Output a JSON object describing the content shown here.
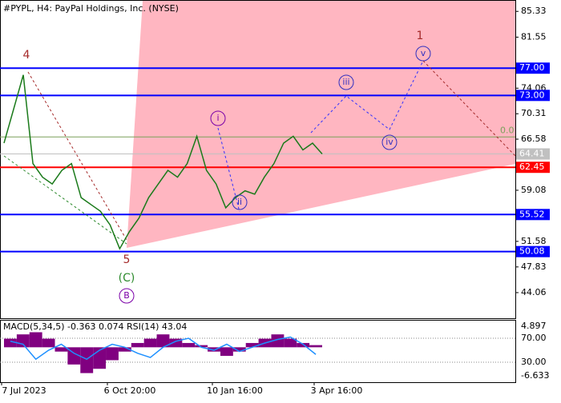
{
  "chart_data": [
    {
      "type": "line",
      "title": "#PYPL, H4:  PayPal Holdings, Inc. (NYSE)",
      "values": [
        66,
        71,
        76,
        63,
        61,
        60,
        62,
        63,
        58,
        57,
        56,
        54,
        50.5,
        53,
        55,
        58,
        60,
        62,
        61,
        63,
        67,
        62,
        60,
        56.5,
        58,
        59,
        58.5,
        61,
        63,
        66,
        67,
        65,
        66,
        64.41
      ],
      "color": "#1a7a1a",
      "ylim": [
        40.3,
        87.0
      ],
      "yticks": [
        85.33,
        81.55,
        74.06,
        70.31,
        66.58,
        59.08,
        51.58,
        47.83,
        44.06
      ],
      "levels": [
        {
          "value": 77,
          "label": "77.00",
          "color": "#0000ff"
        },
        {
          "value": 73,
          "label": "73.00",
          "color": "#0000ff"
        },
        {
          "value": 62.45,
          "label": "62.45",
          "color": "#ff0000"
        },
        {
          "value": 55.52,
          "label": "55.52",
          "color": "#0000ff"
        },
        {
          "value": 50.08,
          "label": "50.08",
          "color": "#0000ff"
        }
      ],
      "current": {
        "value": 64.41,
        "label": "64.41"
      },
      "fib": {
        "value": 66.9,
        "label": "0.0"
      },
      "waves": [
        {
          "label": "4",
          "color": "#a52a2a",
          "circled": false
        },
        {
          "label": "5",
          "color": "#a52a2a",
          "circled": false
        },
        {
          "label": "(C)",
          "color": "#2e8b2e",
          "circled": false
        },
        {
          "label": "B",
          "color": "#7b00a8",
          "circled": true
        },
        {
          "label": "i",
          "color": "#7b00a8",
          "circled": true
        },
        {
          "label": "ii",
          "color": "#3030c0",
          "circled": true
        },
        {
          "label": "iii",
          "color": "#3030c0",
          "circled": true
        },
        {
          "label": "iv",
          "color": "#3030c0",
          "circled": true
        },
        {
          "label": "v",
          "color": "#3030c0",
          "circled": true
        },
        {
          "label": "1",
          "color": "#a52a2a",
          "circled": false
        }
      ],
      "xlabels": [
        "7 Jul 2023",
        "6 Oct 20:00",
        "10 Jan 16:00",
        "3 Apr 16:00"
      ]
    },
    {
      "type": "indicator",
      "title": "MACD(5,34,5) -0.363 0.074 RSI(14) 43.04",
      "values": [
        2,
        3,
        3.5,
        2,
        -1,
        -4,
        -6,
        -5,
        -3,
        -1,
        1,
        2,
        3,
        2,
        1,
        0.5,
        -1,
        -2,
        -1,
        1,
        2,
        3,
        2,
        1,
        0.5
      ],
      "color": "#800080",
      "ylim": [
        -8.12,
        6.38
      ],
      "yticks": [
        4.897,
        -6.633
      ],
      "series": [
        {
          "name": "RSI(14)",
          "color": "#1e90ff",
          "axis": "y2",
          "values": [
            65,
            60,
            35,
            50,
            60,
            45,
            35,
            50,
            60,
            55,
            45,
            38,
            55,
            65,
            70,
            55,
            50,
            60,
            48,
            55,
            62,
            68,
            72,
            60,
            43.04
          ]
        }
      ],
      "y2lim": [
        -3.3,
        100.7
      ],
      "y2ticks": [
        {
          "value": 70,
          "label": "70.00"
        },
        {
          "value": 30,
          "label": "30.00"
        }
      ]
    }
  ]
}
